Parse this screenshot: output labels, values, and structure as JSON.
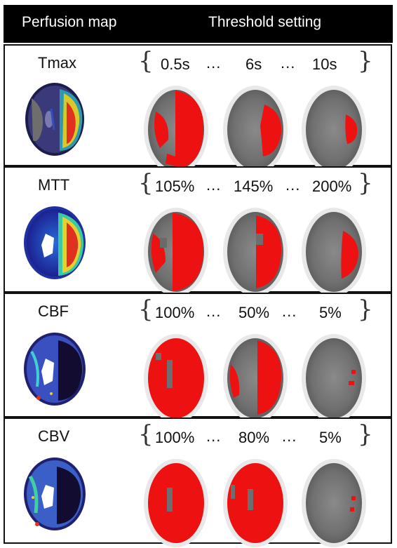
{
  "header": {
    "left": "Perfusion map",
    "right": "Threshold setting"
  },
  "rows": [
    {
      "label": "Tmax",
      "thresholds": [
        "0.5s",
        "6s",
        "10s"
      ],
      "dots": "...",
      "map": "tmax-map"
    },
    {
      "label": "MTT",
      "thresholds": [
        "105%",
        "145%",
        "200%"
      ],
      "dots": "...",
      "map": "mtt-map"
    },
    {
      "label": "CBF",
      "thresholds": [
        "100%",
        "50%",
        "5%"
      ],
      "dots": "...",
      "map": "cbf-map"
    },
    {
      "label": "CBV",
      "thresholds": [
        "100%",
        "80%",
        "5%"
      ],
      "dots": "...",
      "map": "cbv-map"
    }
  ],
  "colors": {
    "lesion": "#ee1111",
    "ct_gray": "#6e6e6e",
    "skull": "#ffffff",
    "header_bg": "#000000"
  }
}
